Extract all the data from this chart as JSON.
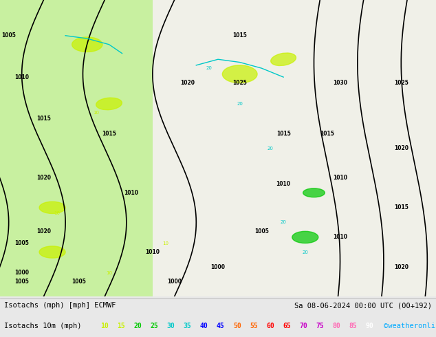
{
  "title_left": "Isotachs (mph) [mph] ECMWF",
  "title_right": "Sa 08-06-2024 00:00 UTC (00+192)",
  "legend_label": "Isotachs 10m (mph)",
  "legend_values": [
    10,
    15,
    20,
    25,
    30,
    35,
    40,
    45,
    50,
    55,
    60,
    65,
    70,
    75,
    80,
    85,
    90
  ],
  "legend_colors": [
    "#c8f000",
    "#c8f000",
    "#00c800",
    "#00c800",
    "#00c8c8",
    "#00c8c8",
    "#0000ff",
    "#0000ff",
    "#ff6400",
    "#ff6400",
    "#ff0000",
    "#ff0000",
    "#c800c8",
    "#c800c8",
    "#ff69b4",
    "#ff69b4",
    "#ffffff"
  ],
  "credit": "©weatheronline.co.uk",
  "credit_color": "#00aaff",
  "bg_color": "#e8e8e8",
  "map_bg_light": "#c8f0a0",
  "map_bg_gray": "#d8d8d8",
  "footer_bg": "#e8e8e8",
  "text_color": "#000000",
  "figsize": [
    6.34,
    4.9
  ],
  "dpi": 100
}
